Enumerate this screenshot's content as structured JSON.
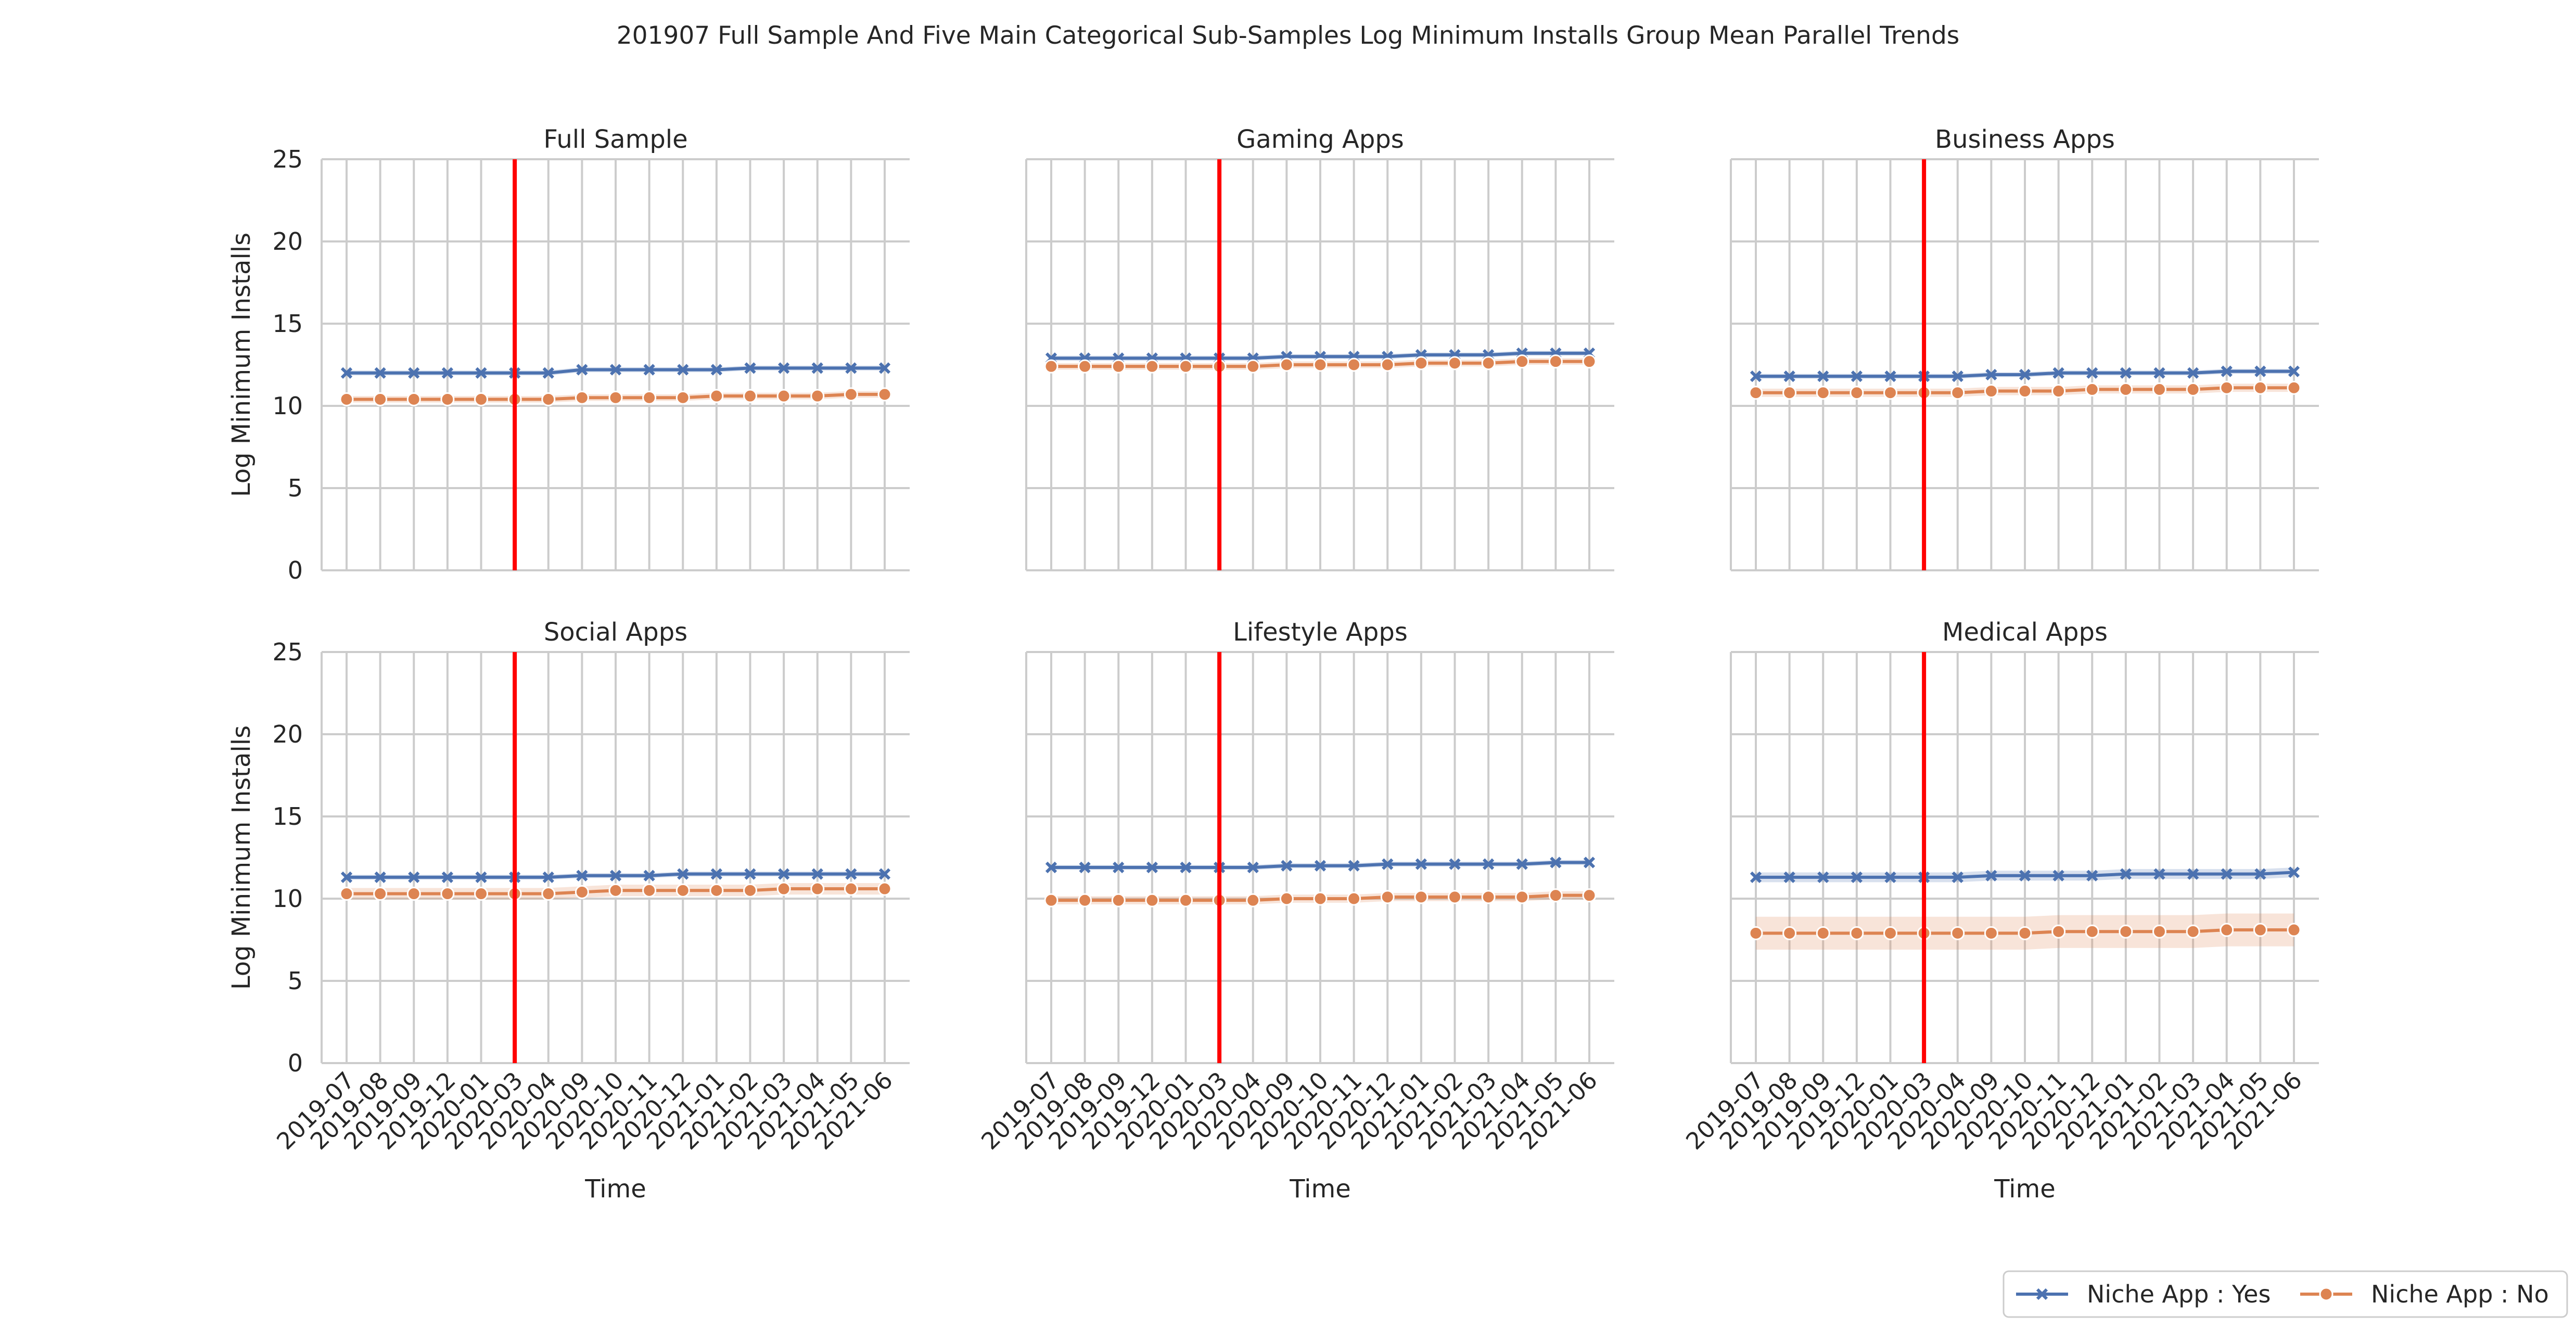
{
  "figure": {
    "suptitle": "201907 Full Sample And Five Main Categorical Sub-Samples Log Minimum Installs Group Mean Parallel Trends"
  },
  "legend": {
    "placement": "bottom-right",
    "entries": [
      {
        "label": "Niche App : Yes",
        "color": "#4C72B0",
        "marker": "x"
      },
      {
        "label": "Niche App : No",
        "color": "#DD8452",
        "marker": "o"
      }
    ]
  },
  "colors": {
    "event_line": "#FF0000",
    "grid": "#CCCCCC",
    "axis": "#CCCCCC"
  },
  "chart_data": [
    {
      "type": "line",
      "title": "Full Sample",
      "xlabel": "Time",
      "ylabel": "Log Minimum Installs",
      "ylim": [
        0,
        25
      ],
      "yticks": [
        0,
        5,
        10,
        15,
        20,
        25
      ],
      "grid": true,
      "event_x": "2020-03",
      "x": [
        "2019-07",
        "2019-08",
        "2019-09",
        "2019-12",
        "2020-01",
        "2020-03",
        "2020-04",
        "2020-09",
        "2020-10",
        "2020-11",
        "2020-12",
        "2021-01",
        "2021-02",
        "2021-03",
        "2021-04",
        "2021-05",
        "2021-06"
      ],
      "series": [
        {
          "name": "Niche App : Yes",
          "values": [
            12.0,
            12.0,
            12.0,
            12.0,
            12.0,
            12.0,
            12.0,
            12.2,
            12.2,
            12.2,
            12.2,
            12.2,
            12.3,
            12.3,
            12.3,
            12.3,
            12.3
          ],
          "ci": 0.15
        },
        {
          "name": "Niche App : No",
          "values": [
            10.4,
            10.4,
            10.4,
            10.4,
            10.4,
            10.4,
            10.4,
            10.5,
            10.5,
            10.5,
            10.5,
            10.6,
            10.6,
            10.6,
            10.6,
            10.7,
            10.7
          ],
          "ci": 0.2
        }
      ]
    },
    {
      "type": "line",
      "title": "Gaming Apps",
      "xlabel": "Time",
      "ylabel": "",
      "ylim": [
        0,
        25
      ],
      "yticks": [
        0,
        5,
        10,
        15,
        20,
        25
      ],
      "grid": true,
      "event_x": "2020-03",
      "x": [
        "2019-07",
        "2019-08",
        "2019-09",
        "2019-12",
        "2020-01",
        "2020-03",
        "2020-04",
        "2020-09",
        "2020-10",
        "2020-11",
        "2020-12",
        "2021-01",
        "2021-02",
        "2021-03",
        "2021-04",
        "2021-05",
        "2021-06"
      ],
      "series": [
        {
          "name": "Niche App : Yes",
          "values": [
            12.9,
            12.9,
            12.9,
            12.9,
            12.9,
            12.9,
            12.9,
            13.0,
            13.0,
            13.0,
            13.0,
            13.1,
            13.1,
            13.1,
            13.2,
            13.2,
            13.2
          ],
          "ci": 0.15
        },
        {
          "name": "Niche App : No",
          "values": [
            12.4,
            12.4,
            12.4,
            12.4,
            12.4,
            12.4,
            12.4,
            12.5,
            12.5,
            12.5,
            12.5,
            12.6,
            12.6,
            12.6,
            12.7,
            12.7,
            12.7
          ],
          "ci": 0.2
        }
      ]
    },
    {
      "type": "line",
      "title": "Business Apps",
      "xlabel": "Time",
      "ylabel": "",
      "ylim": [
        0,
        25
      ],
      "yticks": [
        0,
        5,
        10,
        15,
        20,
        25
      ],
      "grid": true,
      "event_x": "2020-03",
      "x": [
        "2019-07",
        "2019-08",
        "2019-09",
        "2019-12",
        "2020-01",
        "2020-03",
        "2020-04",
        "2020-09",
        "2020-10",
        "2020-11",
        "2020-12",
        "2021-01",
        "2021-02",
        "2021-03",
        "2021-04",
        "2021-05",
        "2021-06"
      ],
      "series": [
        {
          "name": "Niche App : Yes",
          "values": [
            11.8,
            11.8,
            11.8,
            11.8,
            11.8,
            11.8,
            11.8,
            11.9,
            11.9,
            12.0,
            12.0,
            12.0,
            12.0,
            12.0,
            12.1,
            12.1,
            12.1
          ],
          "ci": 0.15
        },
        {
          "name": "Niche App : No",
          "values": [
            10.8,
            10.8,
            10.8,
            10.8,
            10.8,
            10.8,
            10.8,
            10.9,
            10.9,
            10.9,
            11.0,
            11.0,
            11.0,
            11.0,
            11.1,
            11.1,
            11.1
          ],
          "ci": 0.25
        }
      ]
    },
    {
      "type": "line",
      "title": "Social Apps",
      "xlabel": "Time",
      "ylabel": "Log Minimum Installs",
      "ylim": [
        0,
        25
      ],
      "yticks": [
        0,
        5,
        10,
        15,
        20,
        25
      ],
      "grid": true,
      "event_x": "2020-03",
      "x": [
        "2019-07",
        "2019-08",
        "2019-09",
        "2019-12",
        "2020-01",
        "2020-03",
        "2020-04",
        "2020-09",
        "2020-10",
        "2020-11",
        "2020-12",
        "2021-01",
        "2021-02",
        "2021-03",
        "2021-04",
        "2021-05",
        "2021-06"
      ],
      "series": [
        {
          "name": "Niche App : Yes",
          "values": [
            11.3,
            11.3,
            11.3,
            11.3,
            11.3,
            11.3,
            11.3,
            11.4,
            11.4,
            11.4,
            11.5,
            11.5,
            11.5,
            11.5,
            11.5,
            11.5,
            11.5
          ],
          "ci": 0.15
        },
        {
          "name": "Niche App : No",
          "values": [
            10.3,
            10.3,
            10.3,
            10.3,
            10.3,
            10.3,
            10.3,
            10.4,
            10.5,
            10.5,
            10.5,
            10.5,
            10.5,
            10.6,
            10.6,
            10.6,
            10.6
          ],
          "ci": 0.35
        }
      ]
    },
    {
      "type": "line",
      "title": "Lifestyle Apps",
      "xlabel": "Time",
      "ylabel": "",
      "ylim": [
        0,
        25
      ],
      "yticks": [
        0,
        5,
        10,
        15,
        20,
        25
      ],
      "grid": true,
      "event_x": "2020-03",
      "x": [
        "2019-07",
        "2019-08",
        "2019-09",
        "2019-12",
        "2020-01",
        "2020-03",
        "2020-04",
        "2020-09",
        "2020-10",
        "2020-11",
        "2020-12",
        "2021-01",
        "2021-02",
        "2021-03",
        "2021-04",
        "2021-05",
        "2021-06"
      ],
      "series": [
        {
          "name": "Niche App : Yes",
          "values": [
            11.9,
            11.9,
            11.9,
            11.9,
            11.9,
            11.9,
            11.9,
            12.0,
            12.0,
            12.0,
            12.1,
            12.1,
            12.1,
            12.1,
            12.1,
            12.2,
            12.2
          ],
          "ci": 0.15
        },
        {
          "name": "Niche App : No",
          "values": [
            9.9,
            9.9,
            9.9,
            9.9,
            9.9,
            9.9,
            9.9,
            10.0,
            10.0,
            10.0,
            10.1,
            10.1,
            10.1,
            10.1,
            10.1,
            10.2,
            10.2
          ],
          "ci": 0.25
        }
      ]
    },
    {
      "type": "line",
      "title": "Medical Apps",
      "xlabel": "Time",
      "ylabel": "",
      "ylim": [
        0,
        25
      ],
      "yticks": [
        0,
        5,
        10,
        15,
        20,
        25
      ],
      "grid": true,
      "event_x": "2020-03",
      "x": [
        "2019-07",
        "2019-08",
        "2019-09",
        "2019-12",
        "2020-01",
        "2020-03",
        "2020-04",
        "2020-09",
        "2020-10",
        "2020-11",
        "2020-12",
        "2021-01",
        "2021-02",
        "2021-03",
        "2021-04",
        "2021-05",
        "2021-06"
      ],
      "series": [
        {
          "name": "Niche App : Yes",
          "values": [
            11.3,
            11.3,
            11.3,
            11.3,
            11.3,
            11.3,
            11.3,
            11.4,
            11.4,
            11.4,
            11.4,
            11.5,
            11.5,
            11.5,
            11.5,
            11.5,
            11.6
          ],
          "ci": 0.3
        },
        {
          "name": "Niche App : No",
          "values": [
            7.9,
            7.9,
            7.9,
            7.9,
            7.9,
            7.9,
            7.9,
            7.9,
            7.9,
            8.0,
            8.0,
            8.0,
            8.0,
            8.0,
            8.1,
            8.1,
            8.1
          ],
          "ci": 1.0
        }
      ]
    }
  ]
}
